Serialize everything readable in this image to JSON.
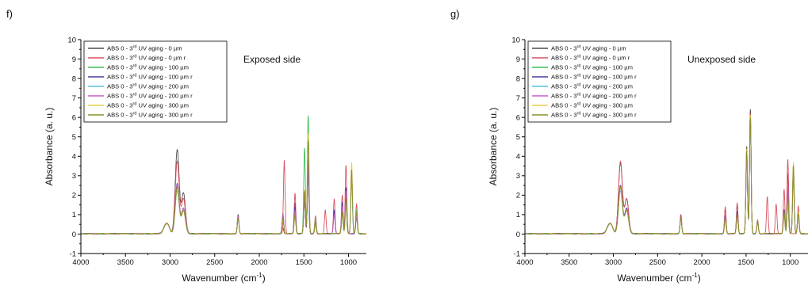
{
  "chart_data": [
    {
      "panel_label": "f)",
      "type": "line",
      "annotation": "Exposed side",
      "xlabel": "Wavenumber (cm",
      "xlabel_sup": "-1",
      "xlabel_tail": ")",
      "ylabel": "Absorbance (a. u.)",
      "xlim": [
        4000,
        800
      ],
      "ylim": [
        -1,
        10
      ],
      "x_ticks": [
        "4000",
        "3500",
        "3000",
        "2500",
        "2000",
        "1500",
        "1000"
      ],
      "x_tick_values": [
        4000,
        3500,
        3000,
        2500,
        2000,
        1500,
        1000
      ],
      "y_ticks": [
        "-1",
        "0",
        "1",
        "2",
        "3",
        "4",
        "5",
        "6",
        "7",
        "8",
        "9",
        "10"
      ],
      "legend_position": "top-left",
      "series": [
        {
          "name": "ABS 0 - 3rd UV aging - 0 µm",
          "color": "#4d4d4d",
          "peaks": [
            [
              3060,
              0.3
            ],
            [
              3025,
              0.4
            ],
            [
              2920,
              4.3
            ],
            [
              2850,
              2.1
            ],
            [
              2237,
              1.0
            ],
            [
              1735,
              0.3
            ],
            [
              1600,
              1.6
            ],
            [
              1493,
              1.8
            ],
            [
              1452,
              3.2
            ],
            [
              1370,
              0.5
            ],
            [
              1070,
              1.0
            ],
            [
              1028,
              1.4
            ],
            [
              910,
              0.8
            ],
            [
              760,
              0.6
            ]
          ]
        },
        {
          "name": "ABS 0 - 3rd UV aging - 0 µm r",
          "color": "#d9515f",
          "peaks": [
            [
              3060,
              0.3
            ],
            [
              3025,
              0.4
            ],
            [
              2920,
              3.7
            ],
            [
              2850,
              1.8
            ],
            [
              2237,
              0.9
            ],
            [
              1720,
              3.8
            ],
            [
              1600,
              2.1
            ],
            [
              1493,
              1.7
            ],
            [
              1452,
              3.1
            ],
            [
              1370,
              0.9
            ],
            [
              1260,
              1.2
            ],
            [
              1160,
              1.8
            ],
            [
              1070,
              2.0
            ],
            [
              1028,
              3.5
            ],
            [
              910,
              1.5
            ],
            [
              760,
              0.9
            ]
          ]
        },
        {
          "name": "ABS 0 - 3rd UV aging - 100 µm",
          "color": "#3fbf5a",
          "peaks": [
            [
              3060,
              0.3
            ],
            [
              3025,
              0.4
            ],
            [
              2920,
              2.4
            ],
            [
              2850,
              1.3
            ],
            [
              2237,
              0.8
            ],
            [
              1735,
              0.9
            ],
            [
              1600,
              1.0
            ],
            [
              1493,
              4.4
            ],
            [
              1452,
              6.1
            ],
            [
              1370,
              0.7
            ],
            [
              1070,
              1.0
            ],
            [
              1028,
              1.6
            ],
            [
              965,
              3.3
            ],
            [
              910,
              1.2
            ],
            [
              760,
              0.7
            ]
          ]
        },
        {
          "name": "ABS 0 - 3rd UV aging - 100 µm r",
          "color": "#4a3a9e",
          "peaks": [
            [
              3060,
              0.3
            ],
            [
              3025,
              0.4
            ],
            [
              2920,
              2.6
            ],
            [
              2850,
              1.3
            ],
            [
              2237,
              0.9
            ],
            [
              1735,
              1.0
            ],
            [
              1600,
              1.4
            ],
            [
              1493,
              2.0
            ],
            [
              1452,
              3.3
            ],
            [
              1370,
              0.6
            ],
            [
              1160,
              1.2
            ],
            [
              1070,
              1.6
            ],
            [
              1028,
              2.4
            ],
            [
              910,
              1.0
            ],
            [
              760,
              0.6
            ]
          ]
        },
        {
          "name": "ABS 0 - 3rd UV aging - 200 µm",
          "color": "#56c1e0",
          "peaks": [
            [
              3060,
              0.3
            ],
            [
              3025,
              0.4
            ],
            [
              2920,
              2.2
            ],
            [
              2850,
              1.2
            ],
            [
              2237,
              0.8
            ],
            [
              1735,
              0.8
            ],
            [
              1600,
              0.9
            ],
            [
              1493,
              2.1
            ],
            [
              1452,
              3.8
            ],
            [
              1370,
              0.6
            ],
            [
              1070,
              1.0
            ],
            [
              1028,
              1.7
            ],
            [
              965,
              2.6
            ],
            [
              910,
              1.0
            ],
            [
              760,
              0.6
            ]
          ]
        },
        {
          "name": "ABS 0 - 3rd UV aging - 200 µm r",
          "color": "#c85ec8",
          "peaks": [
            [
              3060,
              0.3
            ],
            [
              3025,
              0.4
            ],
            [
              2920,
              2.5
            ],
            [
              2850,
              1.3
            ],
            [
              2237,
              0.9
            ],
            [
              1735,
              1.0
            ],
            [
              1600,
              1.2
            ],
            [
              1493,
              2.2
            ],
            [
              1452,
              3.6
            ],
            [
              1370,
              0.6
            ],
            [
              1160,
              1.0
            ],
            [
              1070,
              1.4
            ],
            [
              1028,
              2.2
            ],
            [
              910,
              0.9
            ],
            [
              760,
              0.6
            ]
          ]
        },
        {
          "name": "ABS 0 - 3rd UV aging - 300 µm",
          "color": "#e6d24a",
          "peaks": [
            [
              3060,
              0.3
            ],
            [
              3025,
              0.4
            ],
            [
              2920,
              2.3
            ],
            [
              2850,
              1.2
            ],
            [
              2237,
              0.8
            ],
            [
              1735,
              0.7
            ],
            [
              1600,
              0.9
            ],
            [
              1493,
              2.3
            ],
            [
              1452,
              5.2
            ],
            [
              1370,
              0.6
            ],
            [
              1070,
              1.0
            ],
            [
              1028,
              1.5
            ],
            [
              965,
              3.7
            ],
            [
              910,
              1.1
            ],
            [
              760,
              0.6
            ]
          ]
        },
        {
          "name": "ABS 0 - 3rd UV aging - 300 µm r",
          "color": "#8a8a2a",
          "peaks": [
            [
              3060,
              0.3
            ],
            [
              3025,
              0.4
            ],
            [
              2920,
              2.4
            ],
            [
              2850,
              1.2
            ],
            [
              2237,
              0.8
            ],
            [
              1735,
              0.8
            ],
            [
              1600,
              1.0
            ],
            [
              1493,
              2.2
            ],
            [
              1452,
              4.8
            ],
            [
              1370,
              0.6
            ],
            [
              1070,
              1.1
            ],
            [
              1028,
              1.8
            ],
            [
              965,
              3.3
            ],
            [
              910,
              1.1
            ],
            [
              760,
              0.6
            ]
          ]
        }
      ]
    },
    {
      "panel_label": "g)",
      "type": "line",
      "annotation": "Unexposed side",
      "xlabel": "Wavenumber (cm",
      "xlabel_sup": "-1",
      "xlabel_tail": ")",
      "ylabel": "Absorbance (a. u.)",
      "xlim": [
        4000,
        800
      ],
      "ylim": [
        -1,
        10
      ],
      "x_ticks": [
        "4000",
        "3500",
        "3000",
        "2500",
        "2000",
        "1500",
        "1000"
      ],
      "x_tick_values": [
        4000,
        3500,
        3000,
        2500,
        2000,
        1500,
        1000
      ],
      "y_ticks": [
        "-1",
        "0",
        "1",
        "2",
        "3",
        "4",
        "5",
        "6",
        "7",
        "8",
        "9",
        "10"
      ],
      "legend_position": "top-left",
      "series": [
        {
          "name": "ABS 0 - 3rd UV aging - 0 µm",
          "color": "#4d4d4d",
          "peaks": [
            [
              3060,
              0.3
            ],
            [
              3025,
              0.4
            ],
            [
              2920,
              3.6
            ],
            [
              2850,
              1.8
            ],
            [
              2237,
              1.0
            ],
            [
              1735,
              1.3
            ],
            [
              1600,
              1.5
            ],
            [
              1493,
              4.5
            ],
            [
              1452,
              6.4
            ],
            [
              1370,
              0.6
            ],
            [
              1070,
              1.2
            ],
            [
              1028,
              3.1
            ],
            [
              965,
              3.6
            ],
            [
              910,
              1.1
            ],
            [
              760,
              0.7
            ]
          ]
        },
        {
          "name": "ABS 0 - 3rd UV aging - 0 µm r",
          "color": "#d9515f",
          "peaks": [
            [
              3060,
              0.3
            ],
            [
              3025,
              0.4
            ],
            [
              2920,
              3.7
            ],
            [
              2850,
              1.8
            ],
            [
              2237,
              1.0
            ],
            [
              1735,
              1.4
            ],
            [
              1600,
              1.6
            ],
            [
              1493,
              4.3
            ],
            [
              1452,
              6.2
            ],
            [
              1370,
              0.7
            ],
            [
              1260,
              1.9
            ],
            [
              1160,
              1.5
            ],
            [
              1070,
              2.3
            ],
            [
              1028,
              3.8
            ],
            [
              910,
              1.4
            ],
            [
              760,
              0.8
            ]
          ]
        },
        {
          "name": "ABS 0 - 3rd UV aging - 100 µm",
          "color": "#3fbf5a",
          "peaks": [
            [
              3060,
              0.3
            ],
            [
              3025,
              0.4
            ],
            [
              2920,
              2.3
            ],
            [
              2850,
              1.2
            ],
            [
              2237,
              0.8
            ],
            [
              1735,
              0.8
            ],
            [
              1600,
              1.0
            ],
            [
              1493,
              4.2
            ],
            [
              1452,
              5.9
            ],
            [
              1370,
              0.6
            ],
            [
              1070,
              1.0
            ],
            [
              1028,
              1.6
            ],
            [
              965,
              3.1
            ],
            [
              910,
              1.0
            ],
            [
              760,
              0.6
            ]
          ]
        },
        {
          "name": "ABS 0 - 3rd UV aging - 100 µm r",
          "color": "#4a3a9e",
          "peaks": [
            [
              3060,
              0.3
            ],
            [
              3025,
              0.4
            ],
            [
              2920,
              2.5
            ],
            [
              2850,
              1.3
            ],
            [
              2237,
              0.8
            ],
            [
              1735,
              0.9
            ],
            [
              1600,
              1.1
            ],
            [
              1493,
              4.0
            ],
            [
              1452,
              5.8
            ],
            [
              1370,
              0.6
            ],
            [
              1070,
              1.2
            ],
            [
              1028,
              2.2
            ],
            [
              965,
              3.0
            ],
            [
              910,
              1.0
            ],
            [
              760,
              0.6
            ]
          ]
        },
        {
          "name": "ABS 0 - 3rd UV aging - 200 µm",
          "color": "#56c1e0",
          "peaks": [
            [
              3060,
              0.3
            ],
            [
              3025,
              0.4
            ],
            [
              2920,
              2.2
            ],
            [
              2850,
              1.2
            ],
            [
              2237,
              0.8
            ],
            [
              1735,
              0.8
            ],
            [
              1600,
              0.9
            ],
            [
              1493,
              4.1
            ],
            [
              1452,
              5.7
            ],
            [
              1370,
              0.6
            ],
            [
              1070,
              1.0
            ],
            [
              1028,
              1.5
            ],
            [
              965,
              2.9
            ],
            [
              910,
              1.0
            ],
            [
              760,
              0.6
            ]
          ]
        },
        {
          "name": "ABS 0 - 3rd UV aging - 200 µm r",
          "color": "#c85ec8",
          "peaks": [
            [
              3060,
              0.3
            ],
            [
              3025,
              0.4
            ],
            [
              2920,
              2.4
            ],
            [
              2850,
              1.2
            ],
            [
              2237,
              0.8
            ],
            [
              1735,
              0.9
            ],
            [
              1600,
              1.0
            ],
            [
              1493,
              4.0
            ],
            [
              1452,
              5.9
            ],
            [
              1370,
              0.6
            ],
            [
              1070,
              1.1
            ],
            [
              1028,
              2.4
            ],
            [
              965,
              3.0
            ],
            [
              910,
              1.0
            ],
            [
              760,
              0.6
            ]
          ]
        },
        {
          "name": "ABS 0 - 3rd UV aging - 300 µm",
          "color": "#e6d24a",
          "peaks": [
            [
              3060,
              0.3
            ],
            [
              3025,
              0.4
            ],
            [
              2920,
              2.3
            ],
            [
              2850,
              1.2
            ],
            [
              2237,
              0.8
            ],
            [
              1735,
              0.8
            ],
            [
              1600,
              0.9
            ],
            [
              1493,
              4.4
            ],
            [
              1452,
              6.1
            ],
            [
              1370,
              0.6
            ],
            [
              1070,
              1.0
            ],
            [
              1028,
              1.7
            ],
            [
              965,
              3.7
            ],
            [
              910,
              1.1
            ],
            [
              760,
              0.6
            ]
          ]
        },
        {
          "name": "ABS 0 - 3rd UV aging - 300 µm r",
          "color": "#8a8a2a",
          "peaks": [
            [
              3060,
              0.3
            ],
            [
              3025,
              0.4
            ],
            [
              2920,
              2.4
            ],
            [
              2850,
              1.2
            ],
            [
              2237,
              0.8
            ],
            [
              1735,
              0.8
            ],
            [
              1600,
              1.0
            ],
            [
              1493,
              4.3
            ],
            [
              1452,
              6.0
            ],
            [
              1370,
              0.6
            ],
            [
              1070,
              1.1
            ],
            [
              1028,
              1.9
            ],
            [
              965,
              3.5
            ],
            [
              910,
              1.0
            ],
            [
              760,
              0.6
            ]
          ]
        }
      ]
    }
  ]
}
